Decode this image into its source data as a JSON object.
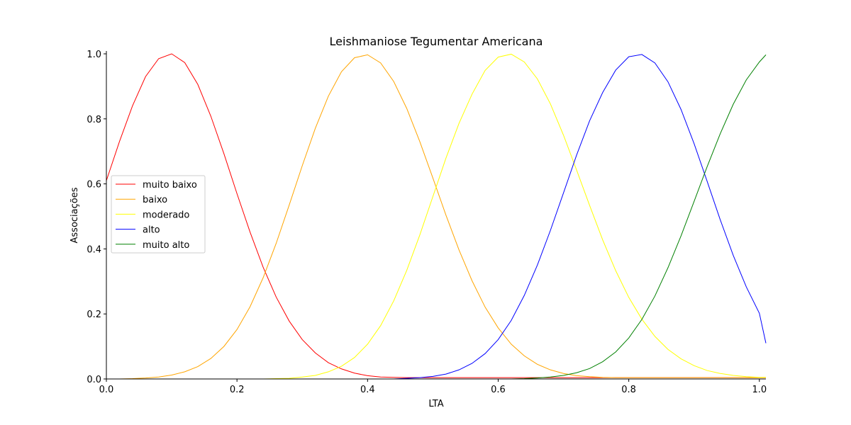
{
  "chart_data": {
    "type": "line",
    "title": "Leishmaniose Tegumentar Americana",
    "xlabel": "LTA",
    "ylabel": "Associações",
    "xlim": [
      0.0,
      1.01
    ],
    "ylim": [
      0.0,
      1.01
    ],
    "xticks": [
      "0.0",
      "0.2",
      "0.4",
      "0.6",
      "0.8",
      "1.0"
    ],
    "yticks": [
      "0.0",
      "0.2",
      "0.4",
      "0.6",
      "0.8",
      "1.0"
    ],
    "grid": false,
    "legend_position": "center-left",
    "x": [
      0.0,
      0.02,
      0.04,
      0.06,
      0.08,
      0.1,
      0.12,
      0.14,
      0.16,
      0.18,
      0.2,
      0.22,
      0.24,
      0.26,
      0.28,
      0.3,
      0.32,
      0.34,
      0.36,
      0.38,
      0.4,
      0.42,
      0.44,
      0.46,
      0.48,
      0.5,
      0.52,
      0.54,
      0.56,
      0.58,
      0.6,
      0.62,
      0.64,
      0.66,
      0.68,
      0.7,
      0.72,
      0.74,
      0.76,
      0.78,
      0.8,
      0.82,
      0.84,
      0.86,
      0.88,
      0.9,
      0.92,
      0.94,
      0.96,
      0.98,
      1.0,
      1.01
    ],
    "series": [
      {
        "name": "muito baixo",
        "color": "#ff0000",
        "values": [
          0.61,
          0.73,
          0.84,
          0.93,
          0.985,
          1.0,
          0.973,
          0.906,
          0.808,
          0.693,
          0.57,
          0.452,
          0.344,
          0.252,
          0.178,
          0.121,
          0.08,
          0.05,
          0.031,
          0.018,
          0.01,
          0.006,
          0.005,
          0.004,
          0.004,
          0.004,
          0.004,
          0.004,
          0.004,
          0.004,
          0.004,
          0.004,
          0.004,
          0.004,
          0.004,
          0.004,
          0.004,
          0.004,
          0.004,
          0.004,
          0.004,
          0.004,
          0.004,
          0.004,
          0.004,
          0.004,
          0.004,
          0.004,
          0.004,
          0.004,
          0.004,
          0.004
        ]
      },
      {
        "name": "baixo",
        "color": "#ffa500",
        "values": [
          0.0,
          0.0,
          0.001,
          0.003,
          0.006,
          0.012,
          0.022,
          0.038,
          0.063,
          0.1,
          0.152,
          0.222,
          0.311,
          0.417,
          0.535,
          0.656,
          0.771,
          0.87,
          0.945,
          0.988,
          0.997,
          0.972,
          0.915,
          0.832,
          0.73,
          0.618,
          0.504,
          0.397,
          0.302,
          0.221,
          0.157,
          0.107,
          0.071,
          0.045,
          0.028,
          0.017,
          0.01,
          0.007,
          0.005,
          0.004,
          0.004,
          0.004,
          0.004,
          0.004,
          0.004,
          0.004,
          0.004,
          0.004,
          0.004,
          0.004,
          0.004,
          0.004
        ]
      },
      {
        "name": "moderado",
        "color": "#ffff00",
        "values": [
          0.0,
          0.0,
          0.0,
          0.0,
          0.0,
          0.0,
          0.0,
          0.0,
          0.0,
          0.0,
          0.0,
          0.0,
          0.0,
          0.001,
          0.002,
          0.006,
          0.011,
          0.022,
          0.039,
          0.066,
          0.107,
          0.164,
          0.24,
          0.334,
          0.443,
          0.561,
          0.679,
          0.786,
          0.876,
          0.949,
          0.99,
          0.999,
          0.975,
          0.923,
          0.846,
          0.75,
          0.643,
          0.534,
          0.428,
          0.333,
          0.251,
          0.184,
          0.131,
          0.091,
          0.062,
          0.041,
          0.026,
          0.017,
          0.011,
          0.007,
          0.005,
          0.005
        ]
      },
      {
        "name": "alto",
        "color": "#0000ff",
        "values": [
          0.0,
          0.0,
          0.0,
          0.0,
          0.0,
          0.0,
          0.0,
          0.0,
          0.0,
          0.0,
          0.0,
          0.0,
          0.0,
          0.0,
          0.0,
          0.0,
          0.0,
          0.0,
          0.0,
          0.0,
          0.0,
          0.0,
          0.0,
          0.002,
          0.004,
          0.008,
          0.015,
          0.028,
          0.048,
          0.078,
          0.121,
          0.18,
          0.257,
          0.35,
          0.457,
          0.572,
          0.688,
          0.794,
          0.881,
          0.95,
          0.991,
          0.998,
          0.972,
          0.914,
          0.829,
          0.724,
          0.608,
          0.49,
          0.38,
          0.283,
          0.202,
          0.11
        ]
      },
      {
        "name": "muito alto",
        "color": "#008000",
        "values": [
          0.0,
          0.0,
          0.0,
          0.0,
          0.0,
          0.0,
          0.0,
          0.0,
          0.0,
          0.0,
          0.0,
          0.0,
          0.0,
          0.0,
          0.0,
          0.0,
          0.0,
          0.0,
          0.0,
          0.0,
          0.0,
          0.0,
          0.0,
          0.0,
          0.0,
          0.0,
          0.0,
          0.0,
          0.0,
          0.0,
          0.0,
          0.0,
          0.001,
          0.003,
          0.006,
          0.011,
          0.019,
          0.032,
          0.053,
          0.083,
          0.126,
          0.183,
          0.255,
          0.342,
          0.44,
          0.546,
          0.653,
          0.754,
          0.845,
          0.92,
          0.975,
          0.997
        ]
      }
    ]
  }
}
